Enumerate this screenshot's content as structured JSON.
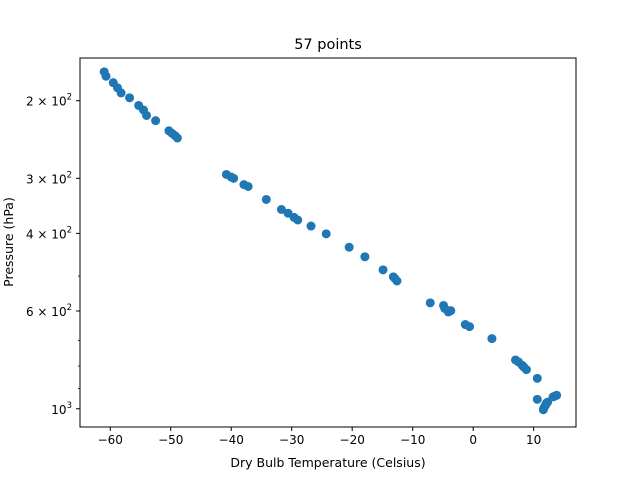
{
  "chart_data": {
    "type": "scatter",
    "title": "57 points",
    "xlabel": "Dry Bulb Temperature (Celsius)",
    "ylabel": "Pressure (hPa)",
    "xlim": [
      -65,
      17
    ],
    "ylim": [
      1100,
      160
    ],
    "yscale": "log",
    "y_inverted": true,
    "grid": false,
    "marker_color": "#1f77b4",
    "x_ticks": [
      {
        "value": -60,
        "label": "−60"
      },
      {
        "value": -50,
        "label": "−50"
      },
      {
        "value": -40,
        "label": "−40"
      },
      {
        "value": -30,
        "label": "−30"
      },
      {
        "value": -20,
        "label": "−20"
      },
      {
        "value": -10,
        "label": "−10"
      },
      {
        "value": 0,
        "label": "0"
      },
      {
        "value": 10,
        "label": "10"
      }
    ],
    "y_ticks": [
      {
        "value": 200,
        "base": "2 × 10",
        "exp": "2"
      },
      {
        "value": 300,
        "base": "3 × 10",
        "exp": "2"
      },
      {
        "value": 400,
        "base": "4 × 10",
        "exp": "2"
      },
      {
        "value": 600,
        "base": "6 × 10",
        "exp": "2"
      },
      {
        "value": 1000,
        "base": "10",
        "exp": "3"
      }
    ],
    "points": [
      {
        "x": -61.0,
        "y": 172
      },
      {
        "x": -60.7,
        "y": 176
      },
      {
        "x": -59.5,
        "y": 182
      },
      {
        "x": -58.8,
        "y": 187
      },
      {
        "x": -58.2,
        "y": 192
      },
      {
        "x": -56.8,
        "y": 197
      },
      {
        "x": -55.3,
        "y": 205
      },
      {
        "x": -54.5,
        "y": 210
      },
      {
        "x": -54.0,
        "y": 216
      },
      {
        "x": -52.5,
        "y": 222
      },
      {
        "x": -50.3,
        "y": 234
      },
      {
        "x": -49.8,
        "y": 237
      },
      {
        "x": -49.3,
        "y": 240
      },
      {
        "x": -48.9,
        "y": 243
      },
      {
        "x": -40.8,
        "y": 294
      },
      {
        "x": -40.0,
        "y": 298
      },
      {
        "x": -39.6,
        "y": 300
      },
      {
        "x": -37.9,
        "y": 310
      },
      {
        "x": -37.2,
        "y": 313
      },
      {
        "x": -34.2,
        "y": 335
      },
      {
        "x": -31.7,
        "y": 353
      },
      {
        "x": -30.6,
        "y": 360
      },
      {
        "x": -29.6,
        "y": 368
      },
      {
        "x": -29.0,
        "y": 373
      },
      {
        "x": -26.8,
        "y": 385
      },
      {
        "x": -24.3,
        "y": 401
      },
      {
        "x": -20.5,
        "y": 430
      },
      {
        "x": -17.9,
        "y": 452
      },
      {
        "x": -14.9,
        "y": 484
      },
      {
        "x": -13.2,
        "y": 502
      },
      {
        "x": -12.9,
        "y": 507
      },
      {
        "x": -12.6,
        "y": 513
      },
      {
        "x": -7.1,
        "y": 575
      },
      {
        "x": -4.9,
        "y": 583
      },
      {
        "x": -4.7,
        "y": 592
      },
      {
        "x": -4.1,
        "y": 603
      },
      {
        "x": -3.7,
        "y": 599
      },
      {
        "x": -1.3,
        "y": 644
      },
      {
        "x": -0.6,
        "y": 651
      },
      {
        "x": 3.1,
        "y": 693
      },
      {
        "x": 7.0,
        "y": 775
      },
      {
        "x": 7.5,
        "y": 783
      },
      {
        "x": 8.1,
        "y": 797
      },
      {
        "x": 8.4,
        "y": 805
      },
      {
        "x": 8.8,
        "y": 815
      },
      {
        "x": 10.6,
        "y": 853
      },
      {
        "x": 10.6,
        "y": 952
      },
      {
        "x": 11.6,
        "y": 1005
      },
      {
        "x": 11.7,
        "y": 995
      },
      {
        "x": 11.9,
        "y": 985
      },
      {
        "x": 12.0,
        "y": 978
      },
      {
        "x": 12.1,
        "y": 972
      },
      {
        "x": 12.2,
        "y": 969
      },
      {
        "x": 12.3,
        "y": 966
      },
      {
        "x": 13.2,
        "y": 940
      },
      {
        "x": 13.5,
        "y": 936
      },
      {
        "x": 13.8,
        "y": 932
      }
    ]
  }
}
